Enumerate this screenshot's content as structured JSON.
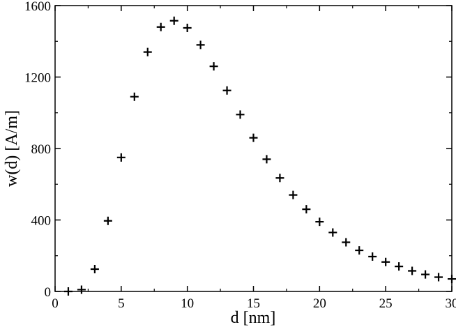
{
  "chart_data": {
    "type": "scatter",
    "title": "",
    "xlabel": "d [nm]",
    "ylabel": "w(d) [A/m]",
    "xlim": [
      0,
      30
    ],
    "ylim": [
      0,
      1600
    ],
    "xticks": [
      0,
      5,
      10,
      15,
      20,
      25,
      30
    ],
    "yticks": [
      0,
      400,
      800,
      1200,
      1600
    ],
    "marker": "plus",
    "marker_color": "#000000",
    "grid": false,
    "legend": "none",
    "series": [
      {
        "x": [
          1,
          2,
          3,
          4,
          5,
          6,
          7,
          8,
          9,
          10,
          11,
          12,
          13,
          14,
          15,
          16,
          17,
          18,
          19,
          20,
          21,
          22,
          23,
          24,
          25,
          26,
          27,
          28,
          29,
          30
        ],
        "y": [
          0,
          10,
          125,
          395,
          750,
          1090,
          1340,
          1480,
          1515,
          1475,
          1380,
          1260,
          1125,
          990,
          860,
          740,
          635,
          540,
          460,
          390,
          330,
          275,
          230,
          195,
          165,
          140,
          115,
          95,
          80,
          70
        ]
      }
    ]
  }
}
